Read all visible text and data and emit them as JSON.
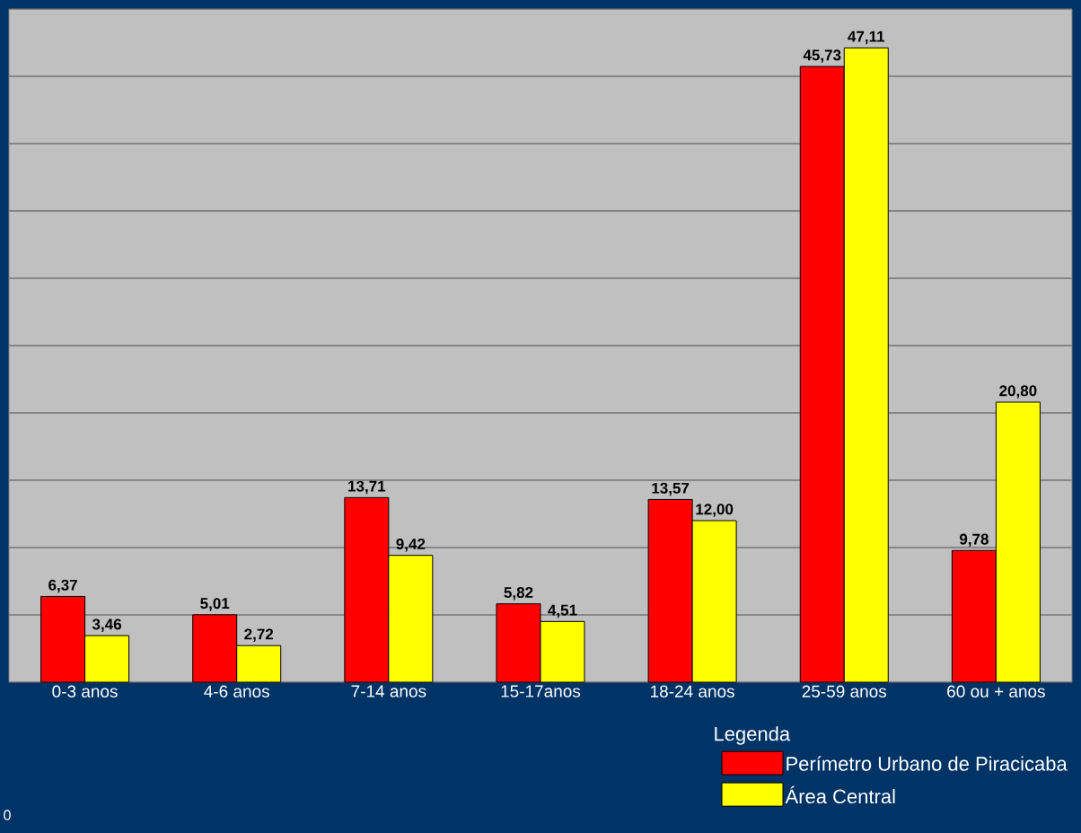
{
  "chart_data": {
    "type": "bar",
    "categories": [
      "0-3 anos",
      "4-6 anos",
      "7-14 anos",
      "15-17anos",
      "18-24 anos",
      "25-59 anos",
      "60 ou + anos"
    ],
    "series": [
      {
        "name": "Perímetro Urbano de Piracicaba",
        "color": "#ff0000",
        "values": [
          6.37,
          5.01,
          13.71,
          5.82,
          13.57,
          45.73,
          9.78
        ],
        "value_labels": [
          "6,37",
          "5,01",
          "13,71",
          "5,82",
          "13,57",
          "45,73",
          "9,78"
        ]
      },
      {
        "name": "Área Central",
        "color": "#ffff00",
        "values": [
          3.46,
          2.72,
          9.42,
          4.51,
          12.0,
          47.11,
          20.8
        ],
        "value_labels": [
          "3,46",
          "2,72",
          "9,42",
          "4,51",
          "12,00",
          "47,11",
          "20,80"
        ]
      }
    ],
    "ylim": [
      0,
      50
    ],
    "yticks": [
      {
        "value": 0,
        "label": null
      },
      {
        "value": 5,
        "label": null
      },
      {
        "value": 10,
        "label": null
      },
      {
        "value": 15,
        "label": null
      },
      {
        "value": 20,
        "label": null
      },
      {
        "value": 25,
        "label": null
      },
      {
        "value": 30,
        "label": null
      },
      {
        "value": 35,
        "label": null
      },
      {
        "value": 40,
        "label": null
      },
      {
        "value": 45,
        "label": null
      },
      {
        "value": 50,
        "label": null
      }
    ],
    "grid": "y",
    "tick_labels": "x",
    "legend": "bottom right",
    "legend_title": "Legenda",
    "annotations": [
      "0"
    ]
  }
}
